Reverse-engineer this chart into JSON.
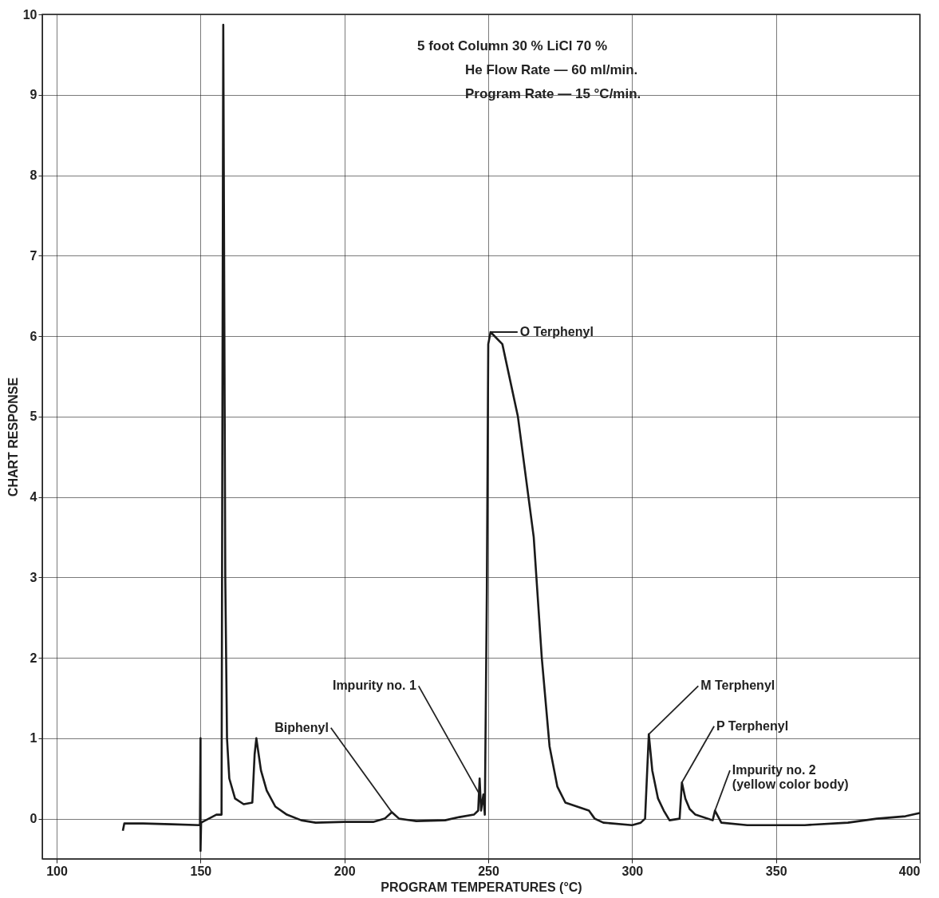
{
  "chart_data": {
    "type": "line",
    "xlabel": "PROGRAM TEMPERATURES (°C)",
    "ylabel": "CHART RESPONSE",
    "xlim": [
      95,
      400
    ],
    "xticks": [
      100,
      150,
      200,
      250,
      300,
      350,
      400
    ],
    "ylim": [
      -0.5,
      10
    ],
    "yticks": [
      0,
      1,
      2,
      3,
      4,
      5,
      6,
      7,
      8,
      9,
      10
    ],
    "grid": true,
    "line_style": "solid",
    "marker": "none",
    "series": [
      {
        "color": "#1a1a1a",
        "x": [
          123,
          123.5,
          130,
          140,
          149.8,
          150,
          150,
          150.2,
          155.5,
          157.3,
          157.9,
          158.6,
          159.2,
          160,
          162,
          165,
          168,
          168.8,
          169.4,
          170,
          171,
          173,
          176,
          180,
          185,
          190,
          200,
          210,
          214,
          216.5,
          219,
          225,
          235,
          240,
          245,
          246.5,
          247,
          247.5,
          248.3,
          248.8,
          249.5,
          250,
          250.8,
          254.9,
          260.3,
          265.8,
          268.6,
          271.3,
          274,
          276.8,
          285,
          287,
          290,
          300,
          303,
          304.5,
          305.8,
          307,
          309,
          311,
          313,
          316.5,
          317.3,
          318.5,
          320,
          322,
          328,
          328.8,
          331,
          340,
          360,
          375,
          385,
          395,
          400
        ],
        "values": [
          -0.15,
          -0.06,
          -0.06,
          -0.07,
          -0.08,
          1.0,
          -0.4,
          -0.05,
          0.05,
          0.05,
          9.87,
          3,
          1,
          0.5,
          0.25,
          0.18,
          0.2,
          0.8,
          1.0,
          0.85,
          0.6,
          0.35,
          0.15,
          0.05,
          -0.02,
          -0.05,
          -0.04,
          -0.04,
          0,
          0.08,
          0,
          -0.03,
          -0.02,
          0.02,
          0.05,
          0.1,
          0.5,
          0.1,
          0.3,
          0.05,
          2.8,
          5.9,
          6.05,
          5.9,
          5,
          3.5,
          2,
          0.9,
          0.4,
          0.2,
          0.1,
          0,
          -0.05,
          -0.08,
          -0.05,
          0,
          1.05,
          0.6,
          0.25,
          0.1,
          -0.02,
          0,
          0.45,
          0.25,
          0.12,
          0.05,
          -0.02,
          0.1,
          -0.05,
          -0.08,
          -0.08,
          -0.05,
          0,
          0.03,
          0.07
        ]
      }
    ],
    "annotations": [
      "5 foot Column 30 % LiCl 70 %",
      "He Flow Rate — 60 ml/min.",
      "Program Rate — 15 °C/min.",
      {
        "text": "O Terphenyl",
        "x": 251,
        "y": 6.05
      },
      {
        "text": "M Terphenyl",
        "x": 305.8,
        "y": 1.05
      },
      {
        "text": "P Terphenyl",
        "x": 317.3,
        "y": 0.45
      },
      {
        "text": "Impurity no. 1",
        "x": 247,
        "y": 0.3
      },
      {
        "text": "Biphenyl",
        "x": 216.5,
        "y": 0.08
      },
      {
        "text": "Impurity no. 2\n(yellow color body)",
        "x": 328.8,
        "y": 0.1
      }
    ]
  }
}
